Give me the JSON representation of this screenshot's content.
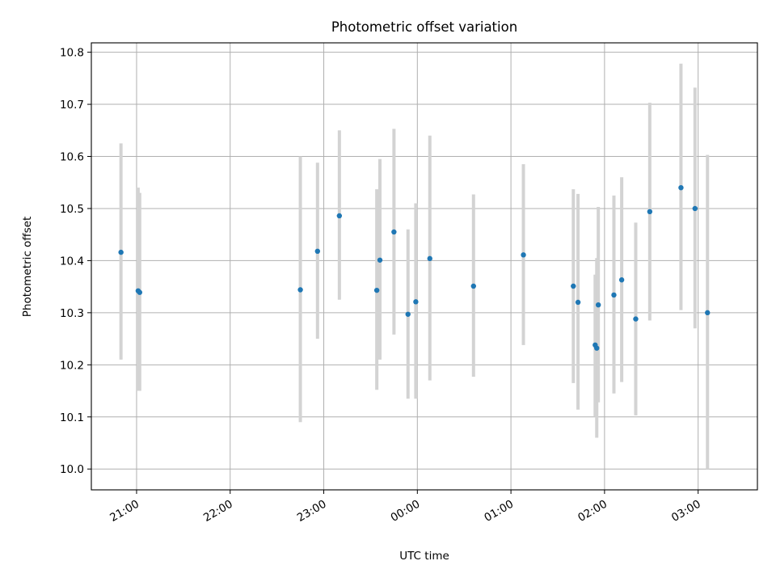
{
  "chart_data": {
    "type": "scatter",
    "title": "Photometric offset variation",
    "xlabel": "UTC time",
    "ylabel": "Photometric offset",
    "x_tick_labels": [
      "21:00",
      "22:00",
      "23:00",
      "00:00",
      "01:00",
      "02:00",
      "03:00"
    ],
    "y_tick_labels": [
      "10.0",
      "10.1",
      "10.2",
      "10.3",
      "10.4",
      "10.5",
      "10.6",
      "10.7",
      "10.8"
    ],
    "xlim": [
      "20:31",
      "03:38"
    ],
    "ylim": [
      9.96,
      10.818
    ],
    "grid": true,
    "point_color": "#1f77b4",
    "errorbar_color": "#d3d3d3",
    "points": [
      {
        "x": "20:50",
        "y": 10.416,
        "low": 10.21,
        "high": 10.625
      },
      {
        "x": "21:01",
        "y": 10.342,
        "low": 10.15,
        "high": 10.54
      },
      {
        "x": "21:02",
        "y": 10.339,
        "low": 10.15,
        "high": 10.53
      },
      {
        "x": "22:45",
        "y": 10.344,
        "low": 10.09,
        "high": 10.6
      },
      {
        "x": "22:56",
        "y": 10.418,
        "low": 10.25,
        "high": 10.588
      },
      {
        "x": "23:10",
        "y": 10.486,
        "low": 10.325,
        "high": 10.65
      },
      {
        "x": "23:34",
        "y": 10.343,
        "low": 10.152,
        "high": 10.537
      },
      {
        "x": "23:36",
        "y": 10.401,
        "low": 10.21,
        "high": 10.595
      },
      {
        "x": "23:45",
        "y": 10.455,
        "low": 10.258,
        "high": 10.653
      },
      {
        "x": "23:54",
        "y": 10.297,
        "low": 10.135,
        "high": 10.46
      },
      {
        "x": "23:59",
        "y": 10.321,
        "low": 10.135,
        "high": 10.51
      },
      {
        "x": "00:08",
        "y": 10.404,
        "low": 10.17,
        "high": 10.64
      },
      {
        "x": "00:36",
        "y": 10.351,
        "low": 10.177,
        "high": 10.527
      },
      {
        "x": "01:08",
        "y": 10.411,
        "low": 10.238,
        "high": 10.585
      },
      {
        "x": "01:40",
        "y": 10.351,
        "low": 10.165,
        "high": 10.537
      },
      {
        "x": "01:43",
        "y": 10.32,
        "low": 10.114,
        "high": 10.528
      },
      {
        "x": "01:54",
        "y": 10.238,
        "low": 10.1,
        "high": 10.373
      },
      {
        "x": "01:55",
        "y": 10.232,
        "low": 10.06,
        "high": 10.405
      },
      {
        "x": "01:56",
        "y": 10.315,
        "low": 10.128,
        "high": 10.503
      },
      {
        "x": "02:06",
        "y": 10.334,
        "low": 10.145,
        "high": 10.525
      },
      {
        "x": "02:11",
        "y": 10.363,
        "low": 10.167,
        "high": 10.56
      },
      {
        "x": "02:20",
        "y": 10.288,
        "low": 10.103,
        "high": 10.473
      },
      {
        "x": "02:29",
        "y": 10.494,
        "low": 10.285,
        "high": 10.703
      },
      {
        "x": "02:49",
        "y": 10.54,
        "low": 10.305,
        "high": 10.778
      },
      {
        "x": "02:58",
        "y": 10.5,
        "low": 10.27,
        "high": 10.732
      },
      {
        "x": "03:06",
        "y": 10.3,
        "low": 10.0,
        "high": 10.603
      }
    ]
  }
}
